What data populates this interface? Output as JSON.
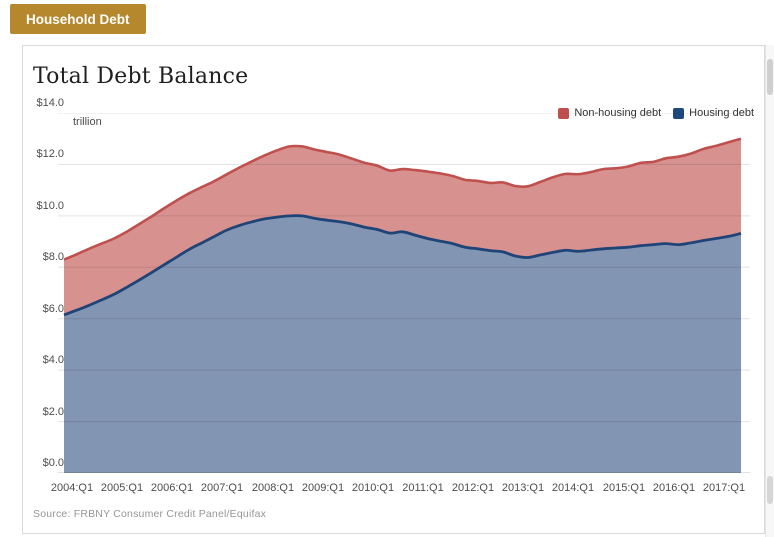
{
  "tab": {
    "label": "Household Debt",
    "bg_color": "#b5882d"
  },
  "panel": {
    "title": "Total Debt Balance",
    "unit_label": "trillion",
    "source": "Source: FRBNY Consumer Credit Panel/Equifax",
    "legend": [
      {
        "label": "Non-housing debt",
        "swatch": "#c0504d"
      },
      {
        "label": "Housing debt",
        "swatch": "#1f497d"
      }
    ]
  },
  "chart_data": {
    "type": "area",
    "stacked": true,
    "title": "Total Debt Balance",
    "ylabel": "$ trillion",
    "ylim": [
      0,
      14
    ],
    "y_tick_step": 2,
    "y_tick_labels_top_to_bottom": [
      "$14.0",
      "$12.0",
      "$10.0",
      "$8.0",
      "$6.0",
      "$4.0",
      "$2.0",
      "$0.0"
    ],
    "grid": true,
    "legend_position": "top-right",
    "x": [
      "2004:Q1",
      "2004:Q2",
      "2004:Q3",
      "2004:Q4",
      "2005:Q1",
      "2005:Q2",
      "2005:Q3",
      "2005:Q4",
      "2006:Q1",
      "2006:Q2",
      "2006:Q3",
      "2006:Q4",
      "2007:Q1",
      "2007:Q2",
      "2007:Q3",
      "2007:Q4",
      "2008:Q1",
      "2008:Q2",
      "2008:Q3",
      "2008:Q4",
      "2009:Q1",
      "2009:Q2",
      "2009:Q3",
      "2009:Q4",
      "2010:Q1",
      "2010:Q2",
      "2010:Q3",
      "2010:Q4",
      "2011:Q1",
      "2011:Q2",
      "2011:Q3",
      "2011:Q4",
      "2012:Q1",
      "2012:Q2",
      "2012:Q3",
      "2012:Q4",
      "2013:Q1",
      "2013:Q2",
      "2013:Q3",
      "2013:Q4",
      "2014:Q1",
      "2014:Q2",
      "2014:Q3",
      "2014:Q4",
      "2015:Q1",
      "2015:Q2",
      "2015:Q3",
      "2015:Q4",
      "2016:Q1",
      "2016:Q2",
      "2016:Q3",
      "2016:Q4",
      "2017:Q1",
      "2017:Q2",
      "2017:Q3"
    ],
    "x_tick_labels": [
      "2004:Q1",
      "2005:Q1",
      "2006:Q1",
      "2007:Q1",
      "2008:Q1",
      "2009:Q1",
      "2010:Q1",
      "2011:Q1",
      "2012:Q1",
      "2013:Q1",
      "2014:Q1",
      "2015:Q1",
      "2016:Q1",
      "2017:Q1"
    ],
    "series": [
      {
        "name": "Housing debt",
        "fill": "#8295b3",
        "stroke": "#1f4477",
        "values": [
          6.15,
          6.33,
          6.52,
          6.73,
          6.95,
          7.22,
          7.5,
          7.8,
          8.1,
          8.4,
          8.7,
          8.95,
          9.2,
          9.45,
          9.63,
          9.77,
          9.88,
          9.95,
          10.0,
          10.0,
          9.9,
          9.83,
          9.77,
          9.68,
          9.56,
          9.47,
          9.33,
          9.38,
          9.25,
          9.12,
          9.02,
          8.92,
          8.78,
          8.72,
          8.65,
          8.6,
          8.44,
          8.38,
          8.48,
          8.58,
          8.66,
          8.62,
          8.67,
          8.72,
          8.75,
          8.78,
          8.84,
          8.88,
          8.92,
          8.88,
          8.95,
          9.04,
          9.12,
          9.2,
          9.32
        ]
      },
      {
        "name": "Non-housing debt",
        "fill": "#d79290",
        "stroke": "#c0504d",
        "values": [
          2.15,
          2.17,
          2.2,
          2.19,
          2.17,
          2.16,
          2.18,
          2.18,
          2.2,
          2.2,
          2.18,
          2.17,
          2.15,
          2.17,
          2.25,
          2.35,
          2.47,
          2.6,
          2.7,
          2.7,
          2.68,
          2.65,
          2.61,
          2.54,
          2.5,
          2.48,
          2.43,
          2.44,
          2.53,
          2.6,
          2.63,
          2.63,
          2.62,
          2.64,
          2.63,
          2.7,
          2.72,
          2.77,
          2.84,
          2.92,
          2.97,
          3.0,
          3.03,
          3.1,
          3.1,
          3.14,
          3.22,
          3.22,
          3.32,
          3.42,
          3.47,
          3.56,
          3.6,
          3.66,
          3.68
        ]
      }
    ],
    "total_top_edge_note": "stack sum: 8.30 (2004:Q1) peaks 12.70 (2008:Q3) trough 11.15 (2013:Q2) ends 13.00 (2017:Q3)"
  }
}
